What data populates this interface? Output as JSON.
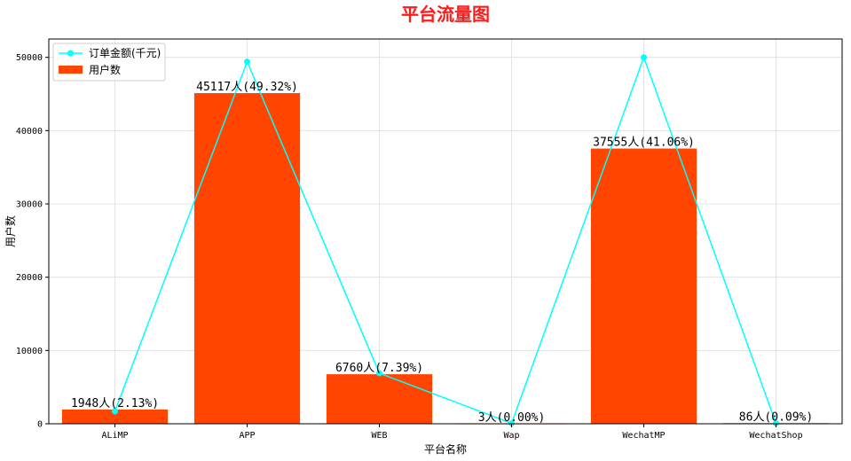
{
  "chart_data": {
    "type": "bar",
    "title": "平台流量图",
    "xlabel": "平台名称",
    "ylabel": "用户数",
    "ylim": [
      0,
      52500
    ],
    "yticks": [
      0,
      10000,
      20000,
      30000,
      40000,
      50000
    ],
    "grid": true,
    "legend_position": "top-left",
    "categories": [
      "ALiMP",
      "APP",
      "WEB",
      "Wap",
      "WechatMP",
      "WechatShop"
    ],
    "series": [
      {
        "name": "用户数",
        "type": "bar",
        "color": "#ff4500",
        "values": [
          1948,
          45117,
          6760,
          3,
          37555,
          86
        ],
        "labels": [
          "1948人(2.13%)",
          "45117人(49.32%)",
          "6760人(7.39%)",
          "3人(0.00%)",
          "37555人(41.06%)",
          "86人(0.09%)"
        ]
      },
      {
        "name": "订单金额(千元)",
        "type": "line",
        "color": "#00ffff",
        "values": [
          1700,
          49400,
          6900,
          60,
          50000,
          50
        ]
      }
    ]
  }
}
